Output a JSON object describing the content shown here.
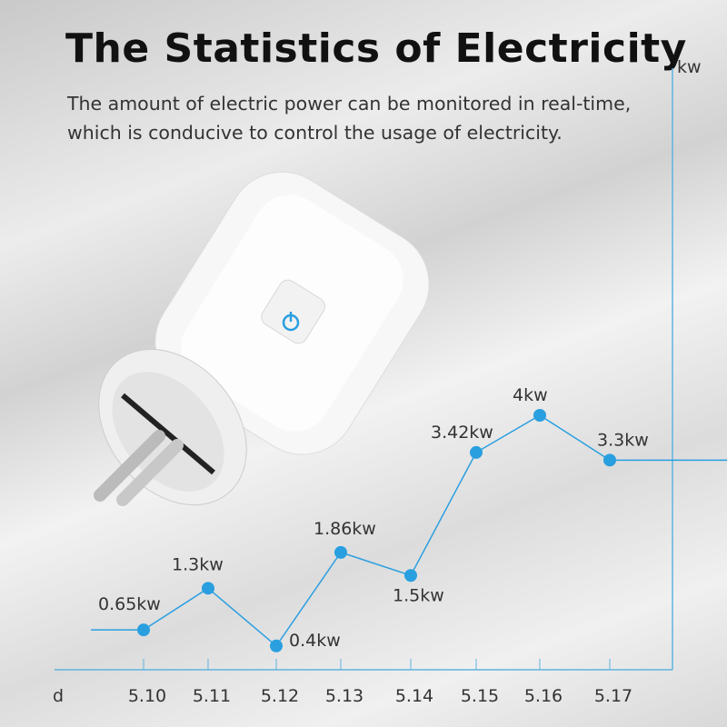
{
  "header": {
    "title": "The Statistics of Electricity",
    "subtitle_lines": [
      "The amount of electric power can be monitored in real-time,",
      "which is conducive to control the usage of electricity."
    ]
  },
  "chart_data": {
    "type": "line",
    "title": "",
    "xlabel": "d",
    "ylabel": "kw",
    "categories": [
      "5.10",
      "5.11",
      "5.12",
      "5.13",
      "5.14",
      "5.15",
      "5.16",
      "5.17"
    ],
    "values": [
      0.65,
      1.3,
      0.4,
      1.86,
      1.5,
      3.42,
      4,
      3.3
    ],
    "data_labels": [
      "0.65kw",
      "1.3kw",
      "0.4kw",
      "1.86kw",
      "1.5kw",
      "3.42kw",
      "4kw",
      "3.3kw"
    ],
    "grid": false,
    "legend": "none",
    "color": "#2a9fe0",
    "axis_color": "#5fb3e0"
  },
  "product": {
    "power_button_icon": "power-icon"
  }
}
